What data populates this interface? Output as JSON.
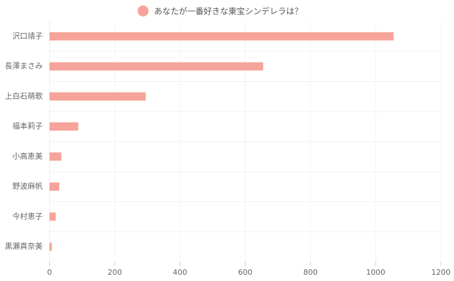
{
  "chart_data": {
    "type": "bar",
    "orientation": "horizontal",
    "series": [
      {
        "name": "あなたが一番好きな東宝シンデレラは？",
        "color": "#f6a399",
        "values": [
          1055,
          655,
          295,
          88,
          36,
          30,
          19,
          7
        ]
      }
    ],
    "categories": [
      "沢口靖子",
      "長澤まさみ",
      "上白石萌歌",
      "福本莉子",
      "小高恵美",
      "野波麻帆",
      "今村恵子",
      "黒瀬真奈美"
    ],
    "xlim": [
      0,
      1200
    ],
    "xticks": [
      0,
      200,
      400,
      600,
      800,
      1000,
      1200
    ],
    "grid": true
  }
}
